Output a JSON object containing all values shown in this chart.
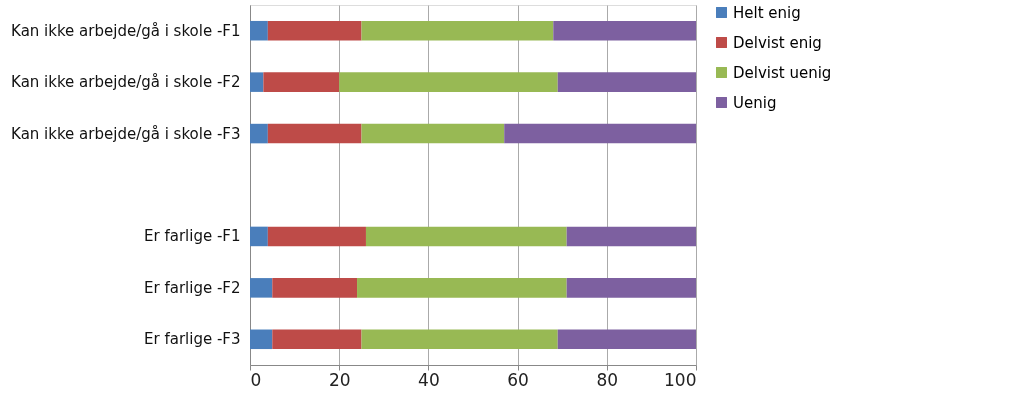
{
  "chart_data": {
    "type": "bar",
    "orientation": "horizontal",
    "stacked": true,
    "categories": [
      "Kan ikke arbejde/gå i skole -F1",
      "Kan ikke arbejde/gå i skole  -F2",
      "Kan ikke arbejde/gå i skole -F3",
      null,
      "Er farlige -F1",
      "Er farlige   -F2",
      "Er farlige -F3"
    ],
    "series": [
      {
        "name": "Helt enig",
        "color": "#4a7ebb",
        "values": [
          4,
          3,
          4,
          null,
          4,
          5,
          5
        ]
      },
      {
        "name": "Delvist enig",
        "color": "#be4b48",
        "values": [
          21,
          17,
          21,
          null,
          22,
          19,
          20
        ]
      },
      {
        "name": "Delvist uenig",
        "color": "#98b954",
        "values": [
          43,
          49,
          32,
          null,
          45,
          47,
          44
        ]
      },
      {
        "name": "Uenig",
        "color": "#7d60a0",
        "values": [
          32,
          31,
          43,
          null,
          29,
          29,
          31
        ]
      }
    ],
    "xlim": [
      0,
      100
    ],
    "xticks": [
      0,
      20,
      40,
      60,
      80,
      100
    ],
    "grid": "x",
    "legend": "right"
  }
}
